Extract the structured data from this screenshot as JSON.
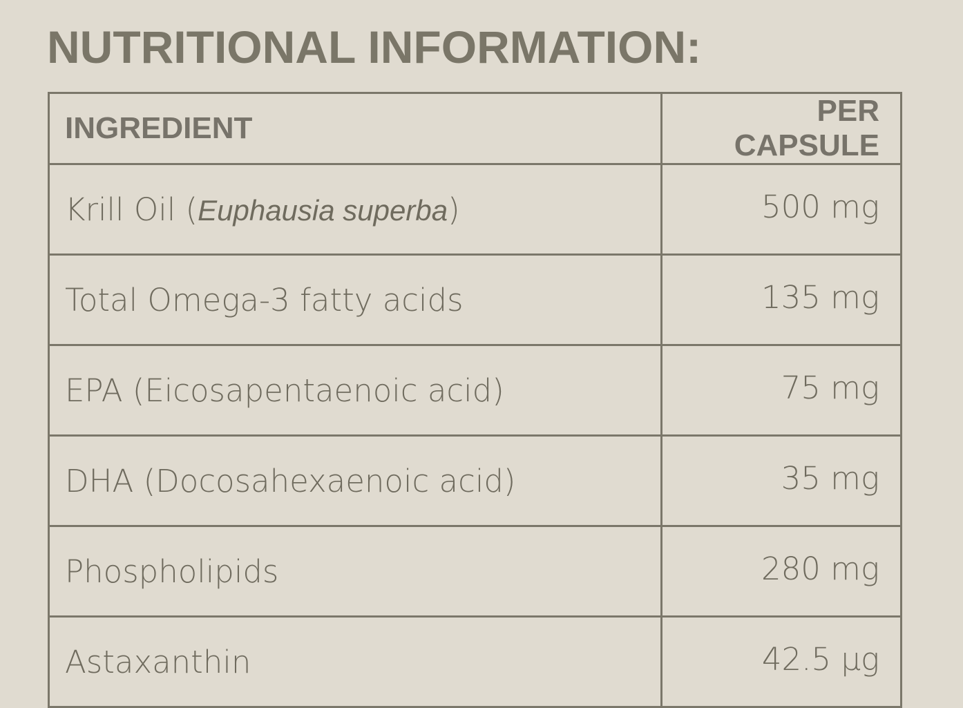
{
  "header": {
    "title": "NUTRITIONAL INFORMATION:"
  },
  "table": {
    "columns": [
      "INGREDIENT",
      "PER CAPSULE"
    ],
    "rows": [
      {
        "ingredient": [
          "Krill Oil (",
          "Euphausia superba",
          ")"
        ],
        "amount": "500 mg"
      },
      {
        "ingredient": [
          "Total Omega-3 fatty acids"
        ],
        "amount": "135 mg"
      },
      {
        "ingredient": [
          "EPA (Eicosapentaenoic acid)"
        ],
        "amount": "75 mg"
      },
      {
        "ingredient": [
          "DHA (Docosahexaenoic acid)"
        ],
        "amount": "35 mg"
      },
      {
        "ingredient": [
          "Phospholipids"
        ],
        "amount": "280 mg"
      },
      {
        "ingredient": [
          "Astaxanthin"
        ],
        "amount": "42.5 µg"
      }
    ]
  }
}
